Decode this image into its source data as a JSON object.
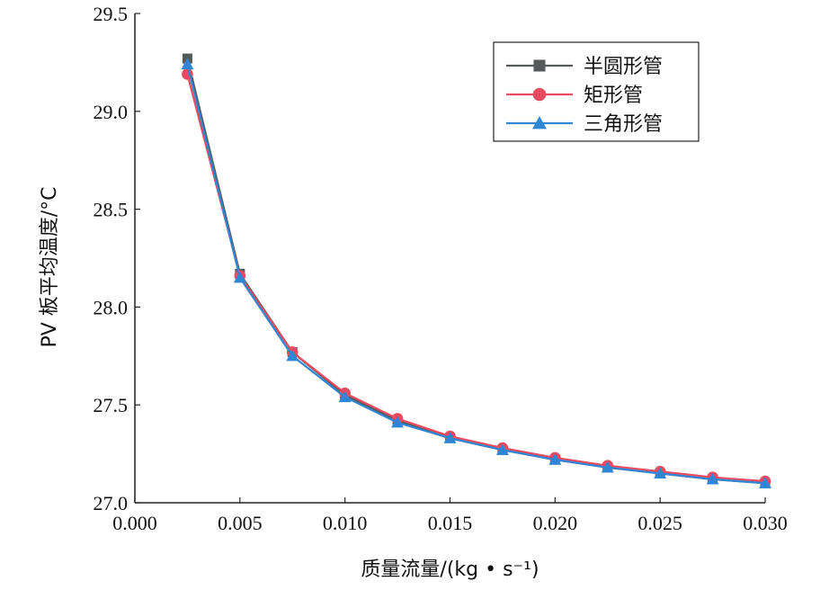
{
  "chart_data": {
    "type": "line",
    "xlabel": "质量流量/(kg • s⁻¹)",
    "ylabel": "PV 板平均温度/°C",
    "xlim": [
      0.0,
      0.03
    ],
    "ylim": [
      27.0,
      29.5
    ],
    "x_ticks": [
      "0.000",
      "0.005",
      "0.010",
      "0.015",
      "0.020",
      "0.025",
      "0.030"
    ],
    "y_ticks": [
      "27.0",
      "27.5",
      "28.0",
      "28.5",
      "29.0",
      "29.5"
    ],
    "x": [
      0.0025,
      0.005,
      0.0075,
      0.01,
      0.0125,
      0.015,
      0.0175,
      0.02,
      0.0225,
      0.025,
      0.0275,
      0.03
    ],
    "legend_position": "top-right",
    "grid": false,
    "series": [
      {
        "name": "半圆形管",
        "marker": "square",
        "color": "#555a5a",
        "values": [
          29.27,
          28.17,
          27.77,
          27.55,
          27.42,
          27.33,
          27.27,
          27.22,
          27.18,
          27.15,
          27.12,
          27.1
        ]
      },
      {
        "name": "矩形管",
        "marker": "circle",
        "color": "#e84a5f",
        "values": [
          29.19,
          28.16,
          27.77,
          27.56,
          27.43,
          27.34,
          27.28,
          27.23,
          27.19,
          27.16,
          27.13,
          27.11
        ]
      },
      {
        "name": "三角形管",
        "marker": "triangle",
        "color": "#2f86d4",
        "values": [
          29.24,
          28.15,
          27.75,
          27.54,
          27.41,
          27.33,
          27.27,
          27.22,
          27.18,
          27.15,
          27.12,
          27.1
        ]
      }
    ]
  }
}
